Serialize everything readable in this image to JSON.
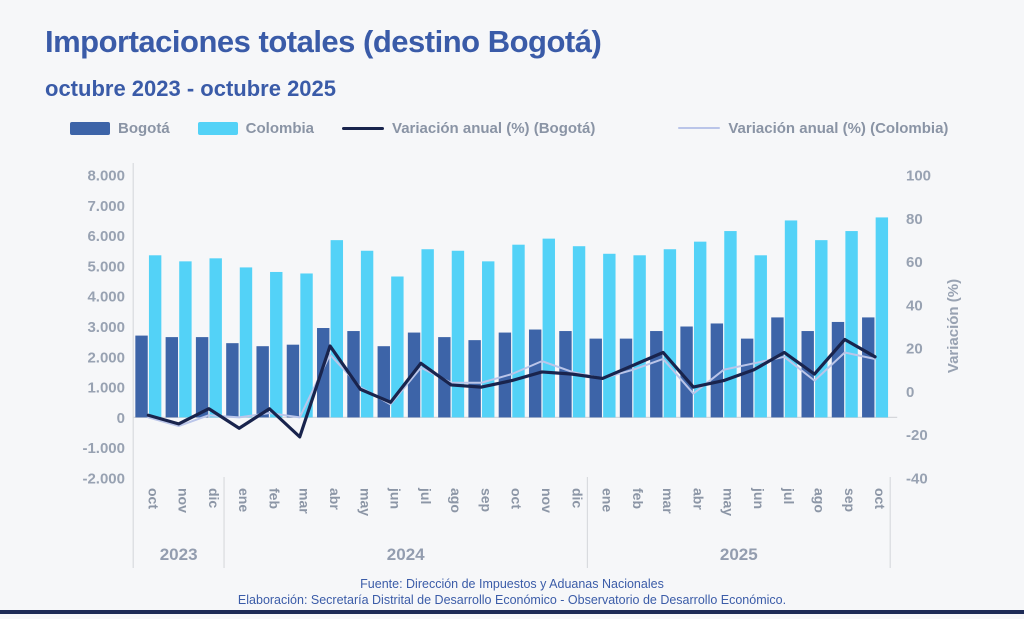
{
  "title": "Importaciones totales (destino Bogotá)",
  "subtitle": "octubre 2023 - octubre 2025",
  "colors": {
    "bogota_bar": "#3d64a8",
    "colombia_bar": "#53d2f7",
    "bogota_line": "#19244d",
    "colombia_line": "#bac5e9",
    "axis_text": "#98a2b2",
    "month_text": "#8c96a6",
    "year_text": "#939daf",
    "accent_blue": "#3a5ba8",
    "divider": "#d9dbdf",
    "baseline": "#d5d7db"
  },
  "legend": [
    {
      "type": "swatch",
      "color": "#3d64a8",
      "label": "Bogotá"
    },
    {
      "type": "swatch",
      "color": "#53d2f7",
      "label": "Colombia"
    },
    {
      "type": "line",
      "color": "#19244d",
      "thickness": 3,
      "label": "Variación anual (%) (Bogotá)"
    },
    {
      "type": "line",
      "color": "#bac5e9",
      "thickness": 2,
      "label": "Variación anual (%) (Colombia)"
    }
  ],
  "chart_data": {
    "type": "combo-bar-line",
    "categories": [
      "oct",
      "nov",
      "dic",
      "ene",
      "feb",
      "mar",
      "abr",
      "may",
      "jun",
      "jul",
      "ago",
      "sep",
      "oct",
      "nov",
      "dic",
      "ene",
      "feb",
      "mar",
      "abr",
      "may",
      "jun",
      "jul",
      "ago",
      "sep",
      "oct"
    ],
    "year_groups": [
      {
        "label": "2023",
        "count": 3
      },
      {
        "label": "2024",
        "count": 12
      },
      {
        "label": "2025",
        "count": 10
      }
    ],
    "bar_series": [
      {
        "name": "Bogotá",
        "axis": "left",
        "color": "#3d64a8",
        "values": [
          2700,
          2650,
          2650,
          2450,
          2350,
          2400,
          2950,
          2850,
          2350,
          2800,
          2650,
          2550,
          2800,
          2900,
          2850,
          2600,
          2600,
          2850,
          3000,
          3100,
          2600,
          3300,
          2850,
          3150,
          3300
        ]
      },
      {
        "name": "Colombia",
        "axis": "left",
        "color": "#53d2f7",
        "values": [
          5350,
          5150,
          5250,
          4950,
          4800,
          4750,
          5850,
          5500,
          4650,
          5550,
          5500,
          5150,
          5700,
          5900,
          5650,
          5400,
          5350,
          5550,
          5800,
          6150,
          5350,
          6500,
          5850,
          6150,
          6600
        ]
      }
    ],
    "line_series": [
      {
        "name": "Variación anual (%) (Bogotá)",
        "axis": "right",
        "color": "#19244d",
        "width": 3.2,
        "values": [
          -11,
          -15,
          -8,
          -17,
          -8,
          -21,
          21,
          1,
          -5,
          13,
          3,
          2,
          5,
          9,
          8,
          6,
          12,
          18,
          2,
          5,
          10,
          18,
          8,
          24,
          16
        ]
      },
      {
        "name": "Variación anual (%) (Colombia)",
        "axis": "right",
        "color": "#bac5e9",
        "width": 2,
        "values": [
          -12,
          -16,
          -11,
          -12,
          -10,
          -12,
          17,
          2,
          -6,
          11,
          4,
          4,
          8,
          14,
          9,
          6,
          10,
          15,
          -1,
          10,
          13,
          16,
          5,
          18,
          15
        ]
      }
    ],
    "left_axis": {
      "min": -2000,
      "max": 8000,
      "tick_values": [
        8000,
        7000,
        6000,
        5000,
        4000,
        3000,
        2000,
        1000,
        0,
        -1000,
        -2000
      ],
      "tick_labels": [
        "8.000",
        "7.000",
        "6.000",
        "5.000",
        "4.000",
        "3.000",
        "2.000",
        "1.000",
        "0",
        "-1.000",
        "-2.000"
      ]
    },
    "right_axis": {
      "label": "Variación (%)",
      "min": -40,
      "max": 100,
      "tick_values": [
        100,
        80,
        60,
        40,
        20,
        0,
        -20,
        -40
      ],
      "tick_labels": [
        "100",
        "80",
        "60",
        "40",
        "20",
        "0",
        "-20",
        "-40"
      ]
    },
    "grid": "off",
    "legend_position": "top"
  },
  "footer": {
    "fuente": "Fuente: Dirección de Impuestos y Aduanas Nacionales",
    "elaboracion": "Elaboración: Secretaría Distrital de Desarrollo Económico - Observatorio de Desarrollo Económico."
  }
}
